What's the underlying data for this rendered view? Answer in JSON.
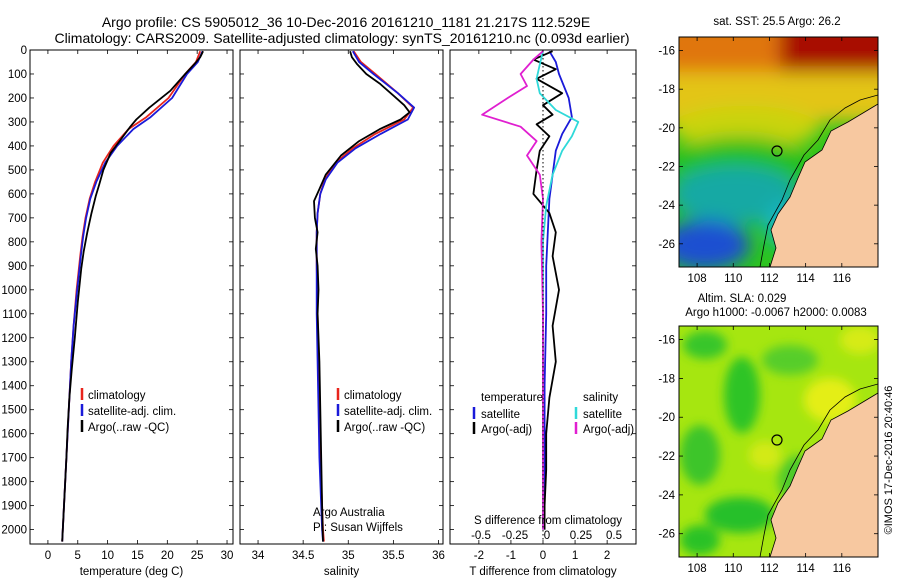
{
  "header": {
    "line1": "Argo profile: CS 5905012_36  10-Dec-2016 20161210_1181 21.217S 112.529E",
    "line2": "Climatology: CARS2009. Satellite-adjusted climatology: synTS_20161210.nc (0.093d earlier)"
  },
  "colors": {
    "climatology": "#e8241c",
    "satellite": "#1a1ad9",
    "argo": "#000000",
    "satellite_diff_s": "#2fd9d9",
    "argo_diff_s": "#e01fd0",
    "land": "#f7c8a0"
  },
  "chart_data": [
    {
      "type": "line",
      "id": "temperature_profile",
      "xlabel": "temperature (deg C)",
      "xticks": [
        0,
        5,
        10,
        15,
        20,
        25,
        30
      ],
      "xlim": [
        -3,
        31
      ],
      "yticks": [
        0,
        100,
        200,
        300,
        400,
        500,
        600,
        700,
        800,
        900,
        1000,
        1100,
        1200,
        1300,
        1400,
        1500,
        1600,
        1700,
        1800,
        1900,
        2000
      ],
      "ylim": [
        2060,
        0
      ],
      "legend": {
        "placement": "lower-middle",
        "entries": [
          "climatology",
          "satellite-adj. clim.",
          "Argo(..raw -QC)"
        ]
      },
      "series": [
        {
          "name": "climatology",
          "color": "#e8241c",
          "x": [
            25.5,
            24.8,
            23,
            20.2,
            16.5,
            13.5,
            11,
            9.2,
            7.9,
            7,
            6.3,
            5.8,
            5.4,
            4.8,
            4.3,
            3.9,
            3.6,
            3.3,
            3.1,
            2.9,
            2.7,
            2.5,
            2.4
          ],
          "y": [
            5,
            50,
            100,
            200,
            280,
            330,
            400,
            470,
            550,
            620,
            700,
            780,
            860,
            1000,
            1150,
            1300,
            1450,
            1600,
            1700,
            1800,
            1900,
            2000,
            2050
          ]
        },
        {
          "name": "satellite-adj. clim.",
          "color": "#1a1ad9",
          "x": [
            25.9,
            25.1,
            23.3,
            20.8,
            17.2,
            14.3,
            11.6,
            9.6,
            8.1,
            7.1,
            6.4,
            5.9,
            5.5,
            4.9,
            4.3,
            3.9,
            3.6,
            3.3,
            3.1,
            2.9,
            2.7,
            2.5,
            2.4
          ],
          "y": [
            5,
            50,
            100,
            200,
            280,
            330,
            400,
            470,
            550,
            620,
            700,
            780,
            860,
            1000,
            1150,
            1300,
            1450,
            1600,
            1700,
            1800,
            1900,
            2000,
            2050
          ]
        },
        {
          "name": "Argo(..raw -QC)",
          "color": "#000000",
          "x": [
            26,
            25.5,
            24.5,
            23,
            20.5,
            17,
            14.8,
            13.8,
            12,
            10.5,
            9.3,
            8.6,
            8,
            7.3,
            6.6,
            6,
            5.6,
            5,
            4.5,
            4,
            3.6,
            3.3,
            3.1,
            2.9,
            2.7,
            2.5,
            2.4
          ],
          "y": [
            5,
            30,
            60,
            100,
            170,
            240,
            290,
            320,
            380,
            430,
            500,
            560,
            610,
            680,
            760,
            840,
            910,
            1050,
            1200,
            1330,
            1450,
            1580,
            1700,
            1800,
            1900,
            2000,
            2050
          ]
        }
      ]
    },
    {
      "type": "line",
      "id": "salinity_profile",
      "xlabel": "salinity",
      "xticks": [
        34,
        34.5,
        35,
        35.5,
        36
      ],
      "xlim": [
        33.8,
        36.05
      ],
      "ylim": [
        2060,
        0
      ],
      "legend": {
        "placement": "lower-middle",
        "entries": [
          "climatology",
          "satellite-adj. clim.",
          "Argo(..raw -QC)"
        ]
      },
      "annotation": [
        "Argo Australia",
        "PI: Susan Wijffels"
      ],
      "series": [
        {
          "name": "climatology",
          "color": "#e8241c",
          "x": [
            35.06,
            35.14,
            35.3,
            35.55,
            35.72,
            35.62,
            35.3,
            35.05,
            34.86,
            34.74,
            34.69,
            34.66,
            34.65,
            34.65,
            34.66,
            34.67,
            34.68,
            34.69,
            34.7,
            34.71,
            34.72,
            34.73
          ],
          "y": [
            5,
            50,
            100,
            180,
            240,
            290,
            350,
            410,
            470,
            540,
            600,
            680,
            760,
            900,
            1100,
            1300,
            1500,
            1700,
            1800,
            1900,
            2000,
            2050
          ]
        },
        {
          "name": "satellite-adj. clim.",
          "color": "#1a1ad9",
          "x": [
            35.05,
            35.12,
            35.28,
            35.55,
            35.73,
            35.66,
            35.36,
            35.08,
            34.88,
            34.75,
            34.69,
            34.66,
            34.65,
            34.65,
            34.65,
            34.66,
            34.67,
            34.68,
            34.69,
            34.7,
            34.71,
            34.72
          ],
          "y": [
            5,
            50,
            100,
            180,
            240,
            290,
            350,
            410,
            470,
            540,
            600,
            680,
            760,
            900,
            1100,
            1300,
            1500,
            1700,
            1800,
            1900,
            2000,
            2050
          ]
        },
        {
          "name": "Argo(..raw -QC)",
          "color": "#000000",
          "x": [
            35.02,
            35.04,
            35.1,
            35.2,
            35.35,
            35.5,
            35.62,
            35.68,
            35.58,
            35.35,
            35.12,
            34.92,
            34.75,
            34.68,
            34.62,
            34.63,
            34.66,
            34.64,
            34.66,
            34.67,
            34.66,
            34.68,
            34.69,
            34.7,
            34.71,
            34.72
          ],
          "y": [
            5,
            30,
            60,
            100,
            140,
            190,
            230,
            260,
            290,
            330,
            380,
            440,
            520,
            580,
            630,
            700,
            760,
            830,
            900,
            1000,
            1100,
            1300,
            1500,
            1700,
            1900,
            2050
          ]
        }
      ]
    },
    {
      "type": "line",
      "id": "difference_profile",
      "xlabel": "T difference from climatology",
      "xlabel_top": "S difference from climatology",
      "xticks": [
        -2,
        -1,
        0,
        1,
        2
      ],
      "xticks_s": [
        -0.5,
        -0.25,
        0,
        0.25,
        0.5
      ],
      "xlim": [
        -2.9,
        2.9
      ],
      "ylim": [
        2060,
        0
      ],
      "legend": {
        "placement": "lower-middle",
        "headers": [
          "temperature",
          "salinity"
        ],
        "entries": [
          "satellite",
          "Argo(-adj)",
          "satellite",
          "Argo(-adj)"
        ]
      },
      "series": [
        {
          "name": "satellite",
          "group": "temperature",
          "color": "#1a1ad9",
          "x": [
            0.2,
            0.4,
            0.5,
            0.8,
            0.9,
            0.6,
            0.4,
            0.3,
            0.2,
            0.15,
            0.1,
            0.1,
            0.05,
            0.05,
            0.05,
            0.05
          ],
          "y": [
            5,
            50,
            100,
            200,
            280,
            350,
            420,
            520,
            620,
            760,
            900,
            1100,
            1400,
            1700,
            1900,
            2000
          ]
        },
        {
          "name": "Argo(-adj)",
          "group": "temperature",
          "color": "#000000",
          "x": [
            0.3,
            -0.3,
            0.4,
            -0.2,
            0.6,
            0.0,
            0.3,
            -0.2,
            0.2,
            -0.1,
            -0.2,
            -0.3,
            0.2,
            0.4,
            0.3,
            0.5,
            0.3,
            0.4,
            0.2,
            0.1,
            0.1,
            0.05,
            0.05
          ],
          "y": [
            5,
            40,
            80,
            120,
            180,
            230,
            270,
            310,
            360,
            420,
            500,
            600,
            680,
            760,
            860,
            1000,
            1150,
            1300,
            1450,
            1600,
            1750,
            1900,
            2000
          ]
        },
        {
          "name": "satellite",
          "group": "salinity",
          "color": "#2fd9d9",
          "x": [
            0.0,
            -0.1,
            -0.2,
            -0.1,
            0.4,
            1.1,
            0.9,
            0.6,
            0.3,
            0.1,
            0.0,
            0.0,
            0.0,
            0.0
          ],
          "y": [
            5,
            60,
            120,
            180,
            250,
            300,
            360,
            420,
            520,
            650,
            800,
            1100,
            1500,
            2000
          ]
        },
        {
          "name": "Argo(-adj)",
          "group": "salinity",
          "color": "#e01fd0",
          "x": [
            0.0,
            -0.3,
            -0.7,
            -0.5,
            -1.1,
            -1.9,
            -0.7,
            -0.2,
            -0.5,
            -0.1,
            0.0,
            -0.05,
            0.0,
            0.0,
            0.0
          ],
          "y": [
            5,
            40,
            100,
            150,
            200,
            270,
            320,
            380,
            440,
            520,
            620,
            800,
            1100,
            1500,
            2000
          ]
        },
        {
          "name": "",
          "group": "reference",
          "color": "#000000",
          "style": "dotted",
          "x": [
            0,
            0
          ],
          "y": [
            0,
            2050
          ]
        }
      ]
    },
    {
      "type": "heatmap",
      "id": "sst_map",
      "title": "sat. SST: 25.5 Argo: 26.2",
      "xticks": [
        108,
        110,
        112,
        114,
        116
      ],
      "xlim": [
        107,
        118
      ],
      "yticks": [
        -16,
        -18,
        -20,
        -22,
        -24,
        -26
      ],
      "ylim": [
        -27.2,
        -15.3
      ],
      "marker": {
        "lon": 112.529,
        "lat": -21.217
      }
    },
    {
      "type": "heatmap",
      "id": "sla_map",
      "title": "Altim. SLA: 0.029",
      "subtitle": "Argo h1000: -0.0067 h2000: 0.0083",
      "xticks": [
        108,
        110,
        112,
        114,
        116
      ],
      "xlim": [
        107,
        118
      ],
      "yticks": [
        -16,
        -18,
        -20,
        -22,
        -24,
        -26
      ],
      "ylim": [
        -27.2,
        -15.3
      ],
      "marker": {
        "lon": 112.529,
        "lat": -21.217
      }
    }
  ],
  "credit": "©IMOS 17-Dec-2016 20:40:46"
}
